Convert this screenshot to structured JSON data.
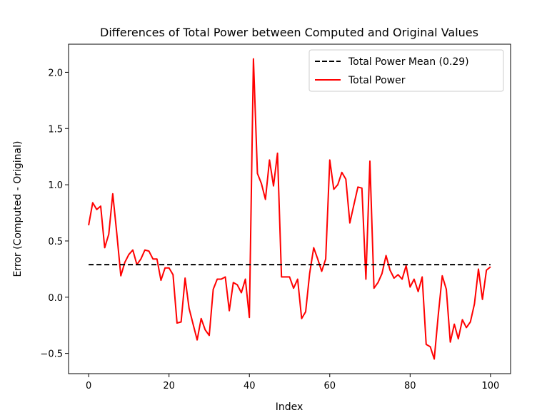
{
  "chart_data": {
    "type": "line",
    "title": "Differences of Total Power between Computed and Original Values",
    "xlabel": "Index",
    "ylabel": "Error (Computed - Original)",
    "xlim": [
      -5,
      105
    ],
    "ylim": [
      -0.68,
      2.25
    ],
    "xticks": [
      0,
      20,
      40,
      60,
      80,
      100
    ],
    "xtick_labels": [
      "0",
      "20",
      "40",
      "60",
      "80",
      "100"
    ],
    "yticks": [
      -0.5,
      0.0,
      0.5,
      1.0,
      1.5,
      2.0
    ],
    "ytick_labels": [
      "−0.5",
      "0.0",
      "0.5",
      "1.0",
      "1.5",
      "2.0"
    ],
    "grid": false,
    "legend_position": "top-right",
    "series": [
      {
        "name": "Total Power",
        "color": "#ff0000",
        "style": "solid",
        "x": [
          0,
          1,
          2,
          3,
          4,
          5,
          6,
          7,
          8,
          9,
          10,
          11,
          12,
          13,
          14,
          15,
          16,
          17,
          18,
          19,
          20,
          21,
          22,
          23,
          24,
          25,
          26,
          27,
          28,
          29,
          30,
          31,
          32,
          33,
          34,
          35,
          36,
          37,
          38,
          39,
          40,
          41,
          42,
          43,
          44,
          45,
          46,
          47,
          48,
          49,
          50,
          51,
          52,
          53,
          54,
          55,
          56,
          57,
          58,
          59,
          60,
          61,
          62,
          63,
          64,
          65,
          66,
          67,
          68,
          69,
          70,
          71,
          72,
          73,
          74,
          75,
          76,
          77,
          78,
          79,
          80,
          81,
          82,
          83,
          84,
          85,
          86,
          87,
          88,
          89,
          90,
          91,
          92,
          93,
          94,
          95,
          96,
          97,
          98,
          99,
          100
        ],
        "values": [
          0.64,
          0.84,
          0.78,
          0.81,
          0.44,
          0.56,
          0.92,
          0.57,
          0.19,
          0.31,
          0.38,
          0.42,
          0.29,
          0.34,
          0.42,
          0.41,
          0.34,
          0.34,
          0.15,
          0.26,
          0.26,
          0.2,
          -0.23,
          -0.22,
          0.17,
          -0.1,
          -0.24,
          -0.38,
          -0.19,
          -0.29,
          -0.34,
          0.07,
          0.16,
          0.16,
          0.18,
          -0.12,
          0.13,
          0.11,
          0.04,
          0.16,
          -0.18,
          2.12,
          1.1,
          1.01,
          0.87,
          1.22,
          0.99,
          1.28,
          0.18,
          0.18,
          0.18,
          0.08,
          0.16,
          -0.19,
          -0.13,
          0.21,
          0.44,
          0.34,
          0.23,
          0.34,
          1.22,
          0.96,
          1.0,
          1.11,
          1.05,
          0.66,
          0.82,
          0.98,
          0.97,
          0.16,
          1.21,
          0.08,
          0.13,
          0.21,
          0.37,
          0.24,
          0.17,
          0.2,
          0.16,
          0.28,
          0.09,
          0.16,
          0.05,
          0.18,
          -0.42,
          -0.44,
          -0.55,
          -0.16,
          0.19,
          0.07,
          -0.4,
          -0.24,
          -0.37,
          -0.2,
          -0.27,
          -0.22,
          -0.06,
          0.25,
          -0.02,
          0.24,
          0.27
        ]
      },
      {
        "name": "Total Power Mean (0.29)",
        "color": "#000000",
        "style": "dashed",
        "x": [
          0,
          100
        ],
        "values": [
          0.29,
          0.29
        ]
      }
    ],
    "legend": [
      {
        "label": "Total Power Mean (0.29)",
        "color": "#000000",
        "style": "dashed"
      },
      {
        "label": "Total Power",
        "color": "#ff0000",
        "style": "solid"
      }
    ]
  }
}
